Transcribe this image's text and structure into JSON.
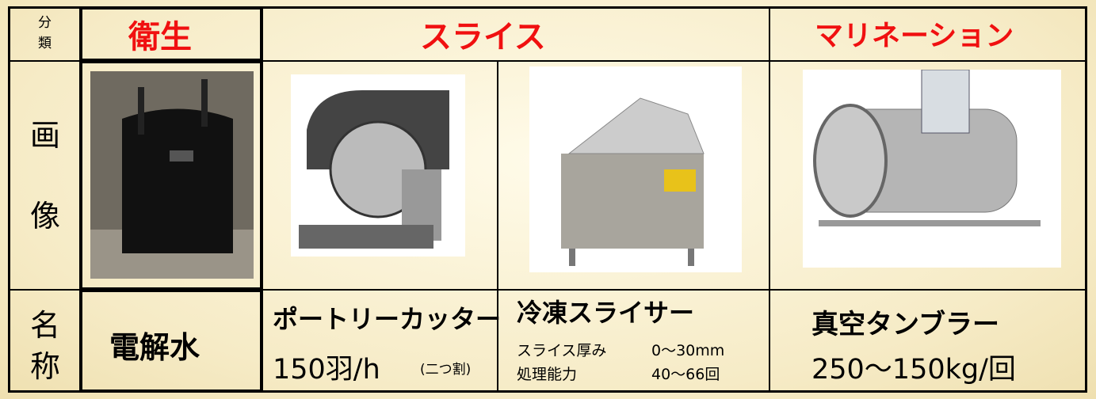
{
  "header": {
    "category_label": [
      "分",
      "類"
    ],
    "columns": [
      "衛生",
      "スライス",
      "マリネーション"
    ]
  },
  "rows": {
    "image_label": [
      "画",
      "像"
    ],
    "name_label": [
      "名",
      "称"
    ]
  },
  "items": [
    {
      "name": "電解水"
    },
    {
      "name": "ポートリーカッター",
      "spec": "150羽/h",
      "note": "(二つ割)"
    },
    {
      "name": "冷凍スライサー",
      "specs": [
        [
          "スライス厚み",
          "0～30mm"
        ],
        [
          "処理能力",
          "40～66回"
        ]
      ]
    },
    {
      "name": "真空タンブラー",
      "spec": "250～150kg/回"
    }
  ]
}
